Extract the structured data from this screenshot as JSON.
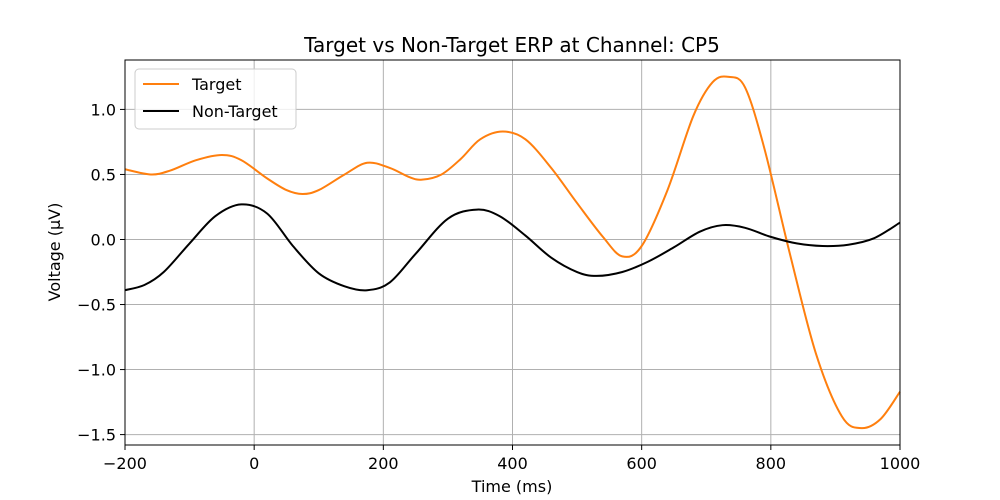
{
  "chart_data": {
    "type": "line",
    "title": "Target vs Non-Target ERP at Channel: CP5",
    "xlabel": "Time (ms)",
    "ylabel": "Voltage (μV)",
    "xlim": [
      -200,
      1000
    ],
    "ylim": [
      -1.58,
      1.38
    ],
    "xticks": [
      -200,
      0,
      200,
      400,
      600,
      800,
      1000
    ],
    "xtick_labels": [
      "−200",
      "0",
      "200",
      "400",
      "600",
      "800",
      "1000"
    ],
    "yticks": [
      1.0,
      0.5,
      0.0,
      -0.5,
      -1.0,
      -1.5
    ],
    "ytick_labels": [
      "1.0",
      "0.5",
      "0.0",
      "−0.5",
      "−1.0",
      "−1.5"
    ],
    "grid": true,
    "legend_position": "top-left",
    "series": [
      {
        "name": "Target",
        "color": "#ff7f0e",
        "x": [
          -200,
          -160,
          -130,
          -90,
          -50,
          -20,
          20,
          50,
          75,
          100,
          140,
          175,
          210,
          240,
          260,
          290,
          320,
          350,
          385,
          420,
          460,
          500,
          540,
          570,
          600,
          640,
          680,
          710,
          735,
          760,
          790,
          830,
          870,
          910,
          940,
          970,
          1000
        ],
        "y": [
          0.54,
          0.5,
          0.53,
          0.61,
          0.65,
          0.61,
          0.47,
          0.38,
          0.35,
          0.38,
          0.5,
          0.59,
          0.55,
          0.48,
          0.46,
          0.5,
          0.62,
          0.77,
          0.83,
          0.77,
          0.55,
          0.28,
          0.02,
          -0.13,
          -0.05,
          0.38,
          0.95,
          1.21,
          1.25,
          1.17,
          0.7,
          -0.12,
          -0.88,
          -1.36,
          -1.45,
          -1.38,
          -1.17
        ]
      },
      {
        "name": "Non-Target",
        "color": "#000000",
        "x": [
          -200,
          -170,
          -140,
          -100,
          -60,
          -20,
          20,
          60,
          100,
          140,
          175,
          210,
          250,
          300,
          345,
          380,
          420,
          460,
          500,
          530,
          570,
          610,
          650,
          690,
          725,
          760,
          800,
          840,
          880,
          920,
          960,
          1000
        ],
        "y": [
          -0.39,
          -0.35,
          -0.25,
          -0.03,
          0.18,
          0.27,
          0.2,
          -0.05,
          -0.26,
          -0.36,
          -0.39,
          -0.33,
          -0.11,
          0.16,
          0.23,
          0.18,
          0.03,
          -0.14,
          -0.25,
          -0.28,
          -0.25,
          -0.17,
          -0.06,
          0.06,
          0.11,
          0.09,
          0.02,
          -0.03,
          -0.05,
          -0.04,
          0.01,
          0.13
        ]
      }
    ]
  }
}
